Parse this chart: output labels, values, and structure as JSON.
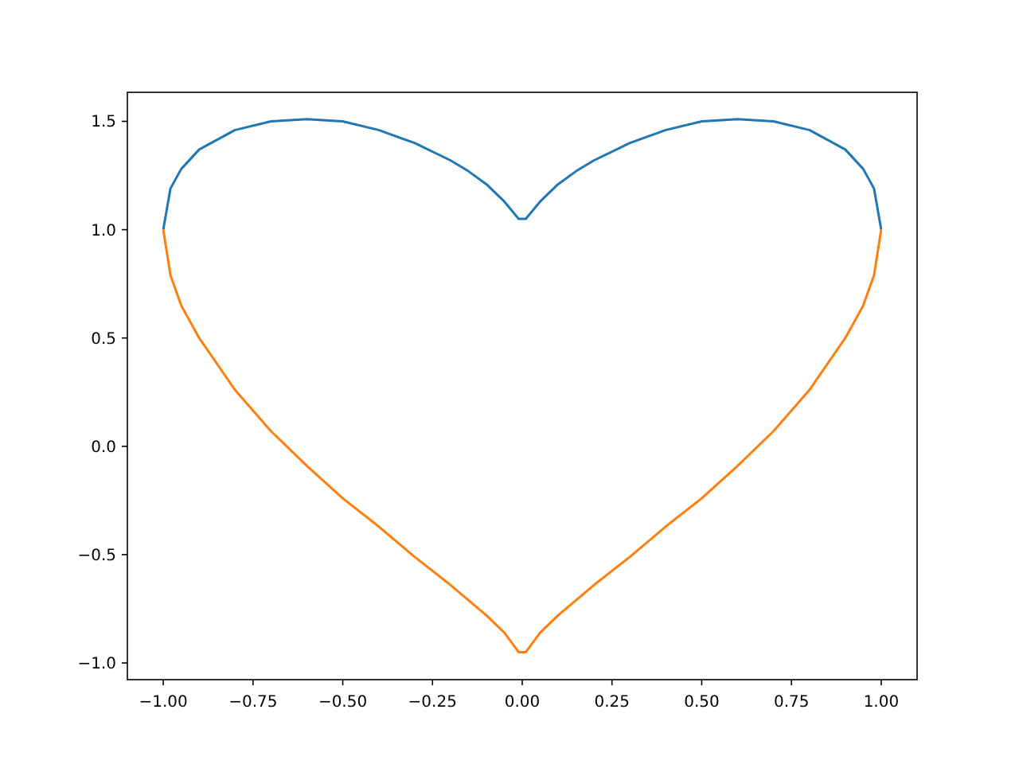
{
  "chart_data": {
    "type": "line",
    "xlim": [
      -1.1,
      1.1
    ],
    "ylim": [
      -1.077,
      1.634
    ],
    "xticks": [
      {
        "value": -1,
        "label": "−1.00"
      },
      {
        "value": -0.75,
        "label": "−0.75"
      },
      {
        "value": -0.5,
        "label": "−0.50"
      },
      {
        "value": -0.25,
        "label": "−0.25"
      },
      {
        "value": 0,
        "label": "0.00"
      },
      {
        "value": 0.25,
        "label": "0.25"
      },
      {
        "value": 0.5,
        "label": "0.50"
      },
      {
        "value": 0.75,
        "label": "0.75"
      },
      {
        "value": 1,
        "label": "1.00"
      }
    ],
    "yticks": [
      {
        "value": -1,
        "label": "−1.0"
      },
      {
        "value": -0.5,
        "label": "−0.5"
      },
      {
        "value": 0,
        "label": "0.0"
      },
      {
        "value": 0.5,
        "label": "0.5"
      },
      {
        "value": 1,
        "label": "1.0"
      },
      {
        "value": 1.5,
        "label": "1.5"
      }
    ],
    "x": [
      -1,
      -0.98,
      -0.95,
      -0.9,
      -0.8,
      -0.7,
      -0.6,
      -0.5,
      -0.4,
      -0.3,
      -0.2,
      -0.15,
      -0.1,
      -0.05,
      -0.01,
      0.01,
      0.05,
      0.1,
      0.15,
      0.2,
      0.3,
      0.4,
      0.5,
      0.6,
      0.7,
      0.8,
      0.9,
      0.95,
      0.98,
      1
    ],
    "series": [
      {
        "color": "#1f77b4",
        "values": [
          1.0,
          1.19,
          1.28,
          1.37,
          1.46,
          1.5,
          1.51,
          1.5,
          1.46,
          1.4,
          1.32,
          1.27,
          1.21,
          1.13,
          1.05,
          1.05,
          1.13,
          1.21,
          1.27,
          1.32,
          1.4,
          1.46,
          1.5,
          1.51,
          1.5,
          1.46,
          1.37,
          1.28,
          1.19,
          1.0
        ]
      },
      {
        "color": "#ff7f0e",
        "values": [
          1.0,
          0.79,
          0.65,
          0.5,
          0.26,
          0.07,
          -0.09,
          -0.24,
          -0.37,
          -0.51,
          -0.64,
          -0.71,
          -0.78,
          -0.86,
          -0.95,
          -0.95,
          -0.86,
          -0.78,
          -0.71,
          -0.64,
          -0.51,
          -0.37,
          -0.24,
          -0.09,
          0.07,
          0.26,
          0.5,
          0.65,
          0.79,
          1.0
        ]
      }
    ],
    "line_style": "solid",
    "marker": "none",
    "grid": false
  }
}
